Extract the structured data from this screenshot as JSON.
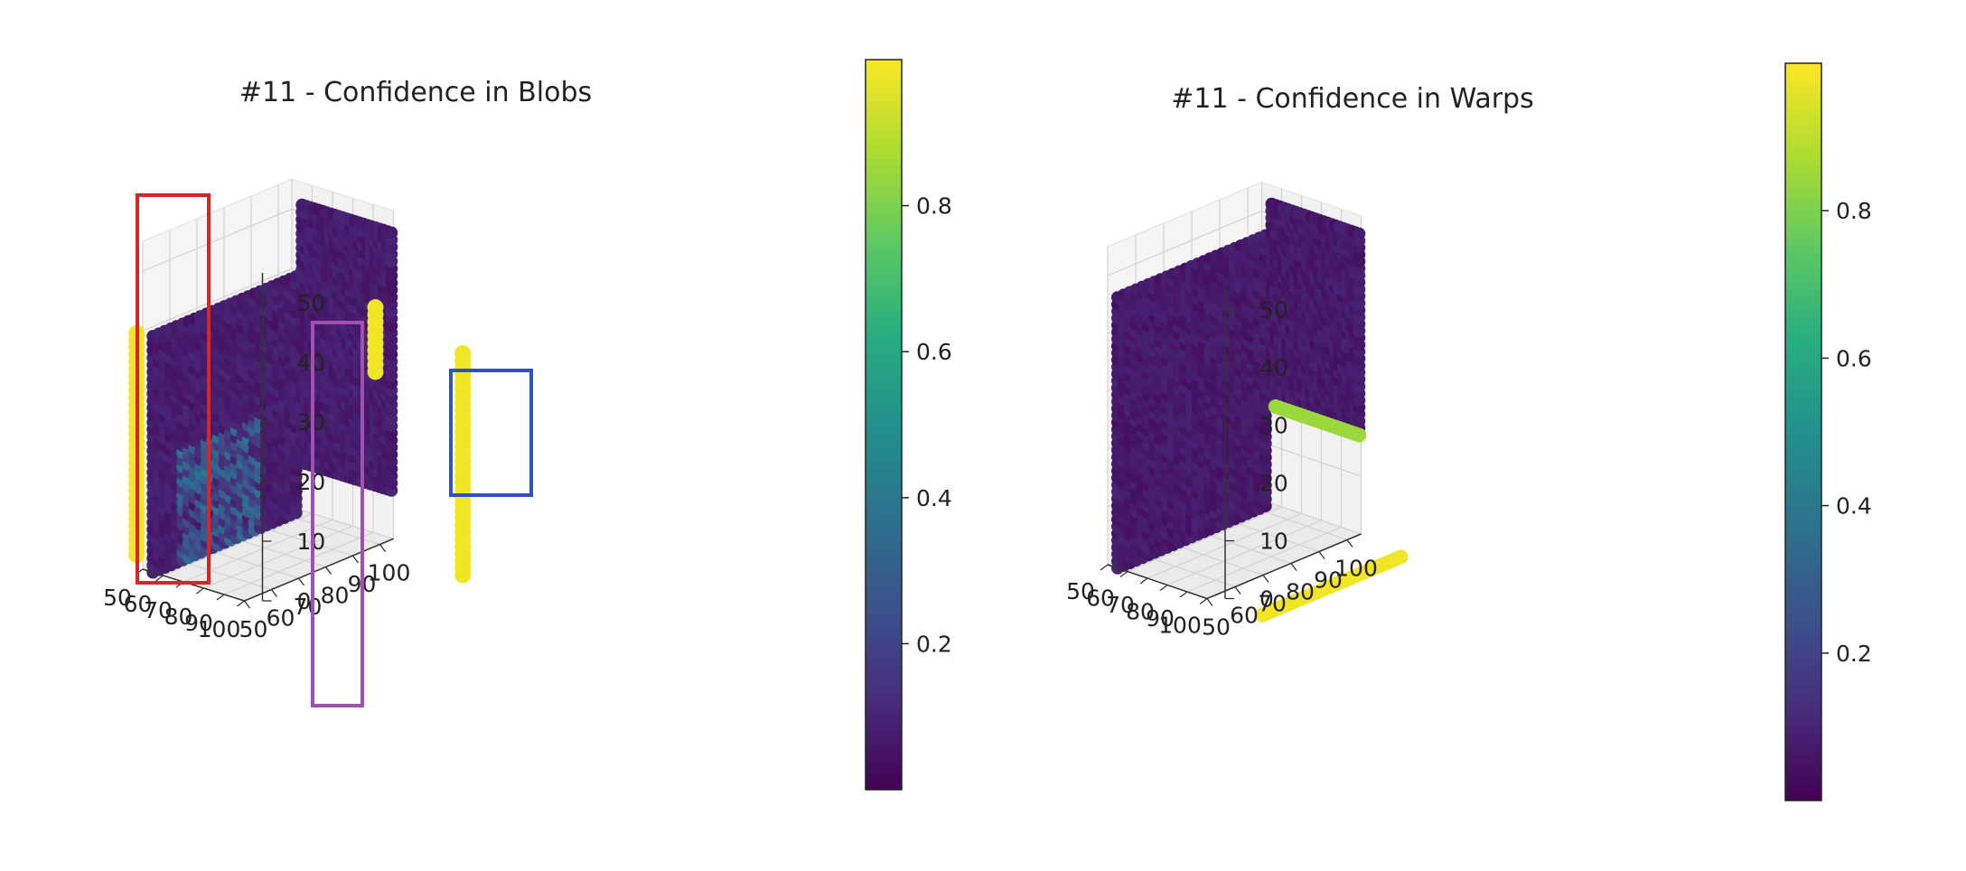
{
  "chart_data": [
    {
      "type": "scatter3d",
      "title": "#11 - Confidence in Blobs",
      "axes": {
        "x": {
          "ticks": [
            50,
            60,
            70,
            80,
            90,
            100
          ],
          "lim": [
            50,
            100
          ]
        },
        "y": {
          "ticks": [
            50,
            60,
            70,
            80,
            90,
            100
          ],
          "lim": [
            50,
            105
          ]
        },
        "z": {
          "ticks": [
            0,
            10,
            20,
            30,
            40,
            50
          ],
          "lim": [
            0,
            55
          ]
        }
      },
      "colorbar": {
        "ticks": [
          "0.2",
          "0.4",
          "0.6",
          "0.8"
        ],
        "range": [
          0,
          1
        ],
        "colormap": "viridis"
      },
      "walls": [
        {
          "plane": "x",
          "x": 55,
          "y_range": [
            50,
            105
          ],
          "z_range": [
            0,
            40
          ],
          "value": 0.05
        },
        {
          "plane": "y",
          "y": 105,
          "x_range": [
            55,
            100
          ],
          "z_range": [
            8,
            52
          ],
          "value": 0.05
        }
      ],
      "highlights": [
        {
          "color": "#d62728",
          "region": "front-left edge",
          "value": 0.98
        },
        {
          "color": "#a050b0",
          "region": "front-right edge",
          "value": 0.98
        },
        {
          "color": "#3050c8",
          "region": "back wall right edge",
          "value": 0.97
        }
      ]
    },
    {
      "type": "scatter3d",
      "title": "#11 - Confidence in Warps",
      "axes": {
        "x": {
          "ticks": [
            50,
            60,
            70,
            80,
            90,
            100
          ],
          "lim": [
            50,
            100
          ]
        },
        "y": {
          "ticks": [
            50,
            60,
            70,
            80,
            90,
            100
          ],
          "lim": [
            50,
            105
          ]
        },
        "z": {
          "ticks": [
            0,
            10,
            20,
            30,
            40,
            50
          ],
          "lim": [
            0,
            55
          ]
        }
      },
      "colorbar": {
        "ticks": [
          "0.2",
          "0.4",
          "0.6",
          "0.8"
        ],
        "range": [
          0,
          1
        ],
        "colormap": "viridis"
      },
      "walls": [
        {
          "plane": "x",
          "x": 55,
          "y_range": [
            50,
            105
          ],
          "z_range": [
            0,
            47
          ],
          "value": 0.04
        },
        {
          "plane": "y",
          "y": 105,
          "x_range": [
            55,
            100
          ],
          "z_range": [
            17,
            52
          ],
          "value": 0.04
        }
      ],
      "edges": [
        {
          "region": "bottom edge of side wall",
          "value": 0.98
        },
        {
          "region": "bottom edge of back wall",
          "value": 0.85
        }
      ]
    }
  ]
}
